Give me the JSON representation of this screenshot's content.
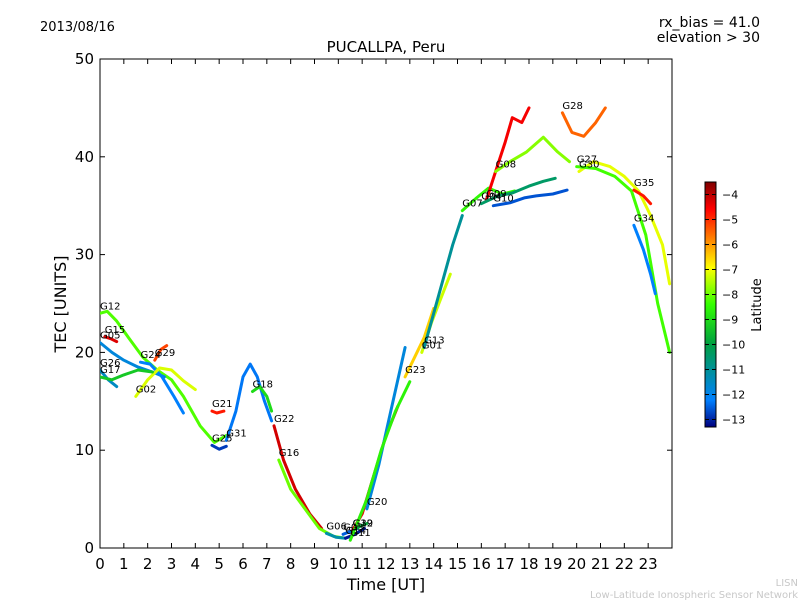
{
  "header": {
    "date": "2013/08/16",
    "bias_line": "rx_bias = 41.0",
    "elevation_line": "elevation > 30"
  },
  "footer": {
    "line1": "LISN",
    "line2": "Low-Latitude Ionospheric Sensor Network"
  },
  "chart_data": {
    "type": "line",
    "title": "PUCALLPA, Peru",
    "xlabel": "Time [UT]",
    "ylabel": "TEC [UNITS]",
    "xlim": [
      0,
      24
    ],
    "ylim": [
      0,
      50
    ],
    "xticks": [
      "0",
      "1",
      "2",
      "3",
      "4",
      "5",
      "6",
      "7",
      "8",
      "9",
      "10",
      "11",
      "12",
      "13",
      "14",
      "15",
      "16",
      "17",
      "18",
      "19",
      "20",
      "21",
      "22",
      "23"
    ],
    "yticks": [
      "0",
      "10",
      "20",
      "30",
      "40",
      "50"
    ],
    "grid": false,
    "colorbar": {
      "label": "Latitude",
      "range": [
        -13.3,
        -3.5
      ],
      "ticks": [
        "−4",
        "−5",
        "−6",
        "−7",
        "−8",
        "−9",
        "−10",
        "−11",
        "−12",
        "−13"
      ],
      "tick_values": [
        -4,
        -5,
        -6,
        -7,
        -8,
        -9,
        -10,
        -11,
        -12,
        -13
      ]
    },
    "series": [
      {
        "name": "G12",
        "lat": -8.2,
        "x": [
          0,
          0.3,
          0.7,
          1.2,
          1.8,
          2.4,
          3,
          3.5,
          4.2,
          4.8,
          5.3
        ],
        "y": [
          24,
          24.2,
          23.2,
          21.5,
          19.5,
          18.2,
          17.2,
          15.5,
          12.5,
          10.8,
          11.5
        ]
      },
      {
        "name": "G05",
        "lat": -11.8,
        "x": [
          0,
          0.5,
          1,
          1.6,
          2.2,
          2.7
        ],
        "y": [
          21,
          20,
          19.2,
          18.5,
          18,
          17.5
        ]
      },
      {
        "name": "G15",
        "lat": -4.3,
        "x": [
          0.2,
          0.45,
          0.7
        ],
        "y": [
          21.6,
          21.4,
          21.1
        ]
      },
      {
        "name": "G29",
        "lat": -5.2,
        "x": [
          2.3,
          2.55,
          2.8
        ],
        "y": [
          19.2,
          20.3,
          20.7
        ]
      },
      {
        "name": "G24",
        "lat": -12.2,
        "x": [
          1.7,
          2.1,
          2.6,
          3.1,
          3.5
        ],
        "y": [
          19,
          18.8,
          17.5,
          15.5,
          13.8
        ]
      },
      {
        "name": "G02",
        "lat": -7.2,
        "x": [
          1.5,
          2,
          2.5,
          3,
          3.5,
          4
        ],
        "y": [
          15.5,
          17.2,
          18.4,
          18.2,
          17.1,
          16.2
        ]
      },
      {
        "name": "G26",
        "lat": -11.5,
        "x": [
          0,
          0.35,
          0.7
        ],
        "y": [
          18.2,
          17.2,
          16.5
        ]
      },
      {
        "name": "G17",
        "lat": -9.3,
        "x": [
          0,
          0.5,
          1,
          1.6,
          2.2
        ],
        "y": [
          17.5,
          17.2,
          17.7,
          18.2,
          18
        ]
      },
      {
        "name": "G21",
        "lat": -4.8,
        "x": [
          4.7,
          4.9,
          5.2
        ],
        "y": [
          14,
          13.8,
          14
        ]
      },
      {
        "name": "G25",
        "lat": -12.8,
        "x": [
          4.7,
          5,
          5.3
        ],
        "y": [
          10.5,
          10.1,
          10.4
        ]
      },
      {
        "name": "G31",
        "lat": -12.3,
        "x": [
          5.3,
          5.7,
          6,
          6.3,
          6.6,
          6.9,
          7.2
        ],
        "y": [
          11,
          14,
          17.5,
          18.8,
          17.5,
          15,
          13
        ]
      },
      {
        "name": "G18",
        "lat": -9,
        "x": [
          6.4,
          6.7,
          7,
          7.2
        ],
        "y": [
          16,
          16.5,
          15.5,
          14
        ]
      },
      {
        "name": "G22",
        "lat": -4.2,
        "x": [
          7.3,
          7.7,
          8.2,
          8.8,
          9.3
        ],
        "y": [
          12.5,
          9,
          6,
          3.5,
          2
        ]
      },
      {
        "name": "G16",
        "lat": -8,
        "x": [
          7.5,
          8,
          8.6,
          9.2,
          9.8,
          10.3
        ],
        "y": [
          9,
          6,
          4,
          2,
          1.2,
          1
        ]
      },
      {
        "name": "G06",
        "lat": -11.2,
        "x": [
          9.5,
          9.9,
          10.3
        ],
        "y": [
          1.5,
          1.1,
          1
        ]
      },
      {
        "name": "G03",
        "lat": -12.5,
        "x": [
          10.2,
          10.5,
          10.8
        ],
        "y": [
          1.4,
          1.7,
          2
        ]
      },
      {
        "name": "G32",
        "lat": -9.8,
        "x": [
          10.6,
          10.9,
          11.2
        ],
        "y": [
          1.8,
          2.2,
          2.5
        ]
      },
      {
        "name": "G14",
        "lat": -13.1,
        "x": [
          10.3,
          10.7,
          11.1
        ],
        "y": [
          1,
          1.4,
          2
        ]
      },
      {
        "name": "G19",
        "lat": -4.4,
        "x": [
          10.6,
          11,
          11.5,
          12,
          12.5
        ],
        "y": [
          1.8,
          3.5,
          7.5,
          11.5,
          14.5
        ]
      },
      {
        "name": "G20",
        "lat": -11.8,
        "x": [
          11.2,
          11.7,
          12.2,
          12.8
        ],
        "y": [
          4,
          8.5,
          14,
          20.5
        ]
      },
      {
        "name": "G11",
        "lat": -8.6,
        "x": [
          10.5,
          11.2,
          11.8,
          12.4,
          13
        ],
        "y": [
          0.8,
          5,
          10,
          14,
          17
        ]
      },
      {
        "name": "G23",
        "lat": -6.5,
        "x": [
          12.8,
          13.2,
          13.6,
          14
        ],
        "y": [
          17.5,
          19.5,
          21.5,
          24.5
        ]
      },
      {
        "name": "G01",
        "lat": -7.3,
        "x": [
          13.5,
          13.9,
          14.3,
          14.7
        ],
        "y": [
          20,
          23,
          25.5,
          28
        ]
      },
      {
        "name": "G13",
        "lat": -11,
        "x": [
          13.6,
          14,
          14.4,
          14.8,
          15.2
        ],
        "y": [
          20.5,
          24,
          27.5,
          31,
          34
        ]
      },
      {
        "name": "G07",
        "lat": -8.5,
        "x": [
          15.2,
          15.8,
          16.3,
          16.9,
          17.4
        ],
        "y": [
          34.5,
          35.8,
          36.8,
          36.2,
          36.5
        ]
      },
      {
        "name": "G09",
        "lat": -4.5,
        "x": [
          16.2,
          16.6,
          17,
          17.3,
          17.7,
          18
        ],
        "y": [
          35.5,
          38.5,
          41.5,
          44,
          43.5,
          45
        ]
      },
      {
        "name": "G08",
        "lat": -7.8,
        "x": [
          16.6,
          17.2,
          17.9,
          18.6,
          19.2,
          19.7
        ],
        "y": [
          38.5,
          39.5,
          40.5,
          42,
          40.5,
          39.5
        ]
      },
      {
        "name": "G04",
        "lat": -10.4,
        "x": [
          16,
          16.7,
          17.3,
          18,
          18.6,
          19.1
        ],
        "y": [
          35.2,
          36,
          36.3,
          37,
          37.5,
          37.8
        ]
      },
      {
        "name": "G10",
        "lat": -12.6,
        "x": [
          16.5,
          17.2,
          17.8,
          18.3,
          19,
          19.6
        ],
        "y": [
          35,
          35.3,
          35.8,
          36,
          36.2,
          36.6
        ]
      },
      {
        "name": "G28",
        "lat": -5.5,
        "x": [
          19.4,
          19.8,
          20.3,
          20.8,
          21.2
        ],
        "y": [
          44.5,
          42.5,
          42.1,
          43.5,
          45
        ]
      },
      {
        "name": "G30",
        "lat": -7.1,
        "x": [
          20.1,
          20.7,
          21.4,
          22,
          22.6,
          23.1,
          23.6,
          23.9
        ],
        "y": [
          38.5,
          39.5,
          39,
          38,
          36.5,
          34,
          31,
          27
        ]
      },
      {
        "name": "G27",
        "lat": -8.3,
        "x": [
          20,
          20.8,
          21.6,
          22.3,
          22.9,
          23.4,
          23.9
        ],
        "y": [
          39,
          38.8,
          38,
          36.5,
          32,
          25,
          20
        ]
      },
      {
        "name": "G34",
        "lat": -12.2,
        "x": [
          22.4,
          22.8,
          23.1,
          23.3
        ],
        "y": [
          33,
          30.5,
          28,
          26
        ]
      },
      {
        "name": "G35",
        "lat": -4.8,
        "x": [
          22.4,
          22.8,
          23.1
        ],
        "y": [
          36.6,
          36,
          35.2
        ]
      }
    ]
  }
}
